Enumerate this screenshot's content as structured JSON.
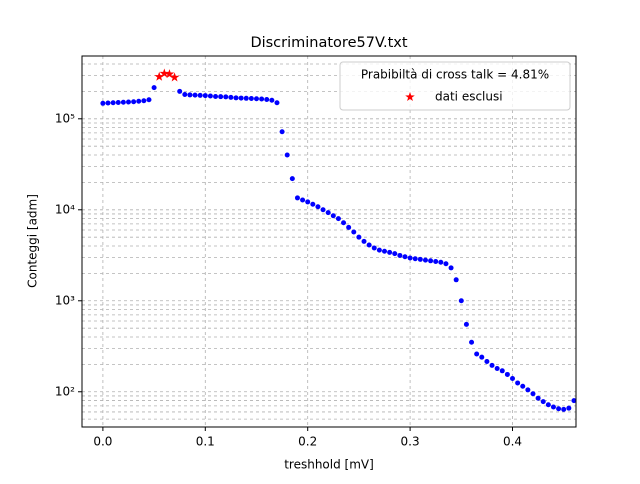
{
  "chart_data": {
    "type": "scatter",
    "title": "Discriminatore57V.txt",
    "x_label": "treshhold [mV]",
    "y_label": "Conteggi [adm]",
    "log_y": true,
    "grid": true,
    "legend_position": "upper right",
    "legend_title": "Prabibiltà di cross talk = 4.81%",
    "xlim": [
      -0.0204,
      0.462
    ],
    "ylim": [
      41,
      490000
    ],
    "xticks": [
      {
        "value": 0,
        "label": "0.0"
      },
      0.1,
      0.2,
      0.3,
      0.4
    ],
    "yticks": [
      {
        "value": 100,
        "label": "10²"
      },
      {
        "value": 1000,
        "label": "10³"
      },
      {
        "value": 10000,
        "label": "10⁴"
      },
      {
        "value": 100000,
        "label": "10⁵"
      }
    ],
    "series": [
      {
        "color": "#0000ff",
        "marker": "circle",
        "x": [
          0,
          0.005,
          0.01,
          0.015,
          0.02,
          0.025,
          0.03,
          0.035,
          0.04,
          0.045,
          0.05,
          0.075,
          0.08,
          0.085,
          0.09,
          0.095,
          0.1,
          0.105,
          0.11,
          0.115,
          0.12,
          0.125,
          0.13,
          0.135,
          0.14,
          0.145,
          0.15,
          0.155,
          0.16,
          0.165,
          0.17,
          0.175,
          0.18,
          0.185,
          0.19,
          0.195,
          0.2,
          0.205,
          0.21,
          0.215,
          0.22,
          0.225,
          0.23,
          0.235,
          0.24,
          0.245,
          0.25,
          0.255,
          0.26,
          0.265,
          0.27,
          0.275,
          0.28,
          0.285,
          0.29,
          0.295,
          0.3,
          0.305,
          0.31,
          0.315,
          0.32,
          0.325,
          0.33,
          0.335,
          0.34,
          0.345,
          0.35,
          0.355,
          0.36,
          0.365,
          0.37,
          0.375,
          0.38,
          0.385,
          0.39,
          0.395,
          0.4,
          0.405,
          0.41,
          0.415,
          0.42,
          0.425,
          0.43,
          0.435,
          0.44,
          0.445,
          0.45,
          0.455,
          0.46
        ],
        "values": [
          148000,
          149000,
          150000,
          151000,
          152000,
          153000,
          154000,
          156000,
          158000,
          162000,
          220000,
          200000,
          185000,
          183000,
          182000,
          181000,
          180000,
          178000,
          176000,
          175000,
          174000,
          172000,
          170000,
          169000,
          168000,
          167000,
          166000,
          165000,
          163000,
          160000,
          150000,
          72000,
          40000,
          22000,
          13500,
          12800,
          12200,
          11500,
          10800,
          10000,
          9300,
          8600,
          8000,
          7200,
          6400,
          5700,
          5000,
          4500,
          4100,
          3800,
          3600,
          3500,
          3400,
          3300,
          3150,
          3050,
          2950,
          2900,
          2850,
          2800,
          2750,
          2700,
          2650,
          2550,
          2300,
          1700,
          1000,
          550,
          350,
          260,
          240,
          215,
          195,
          180,
          170,
          155,
          140,
          125,
          115,
          105,
          95,
          85,
          78,
          72,
          68,
          65,
          64,
          66,
          80
        ]
      },
      {
        "name": "dati esclusi",
        "color": "#ff0000",
        "marker": "star",
        "x": [
          0.055,
          0.06,
          0.065,
          0.07
        ],
        "values": [
          290000,
          315000,
          310000,
          285000
        ]
      }
    ]
  }
}
